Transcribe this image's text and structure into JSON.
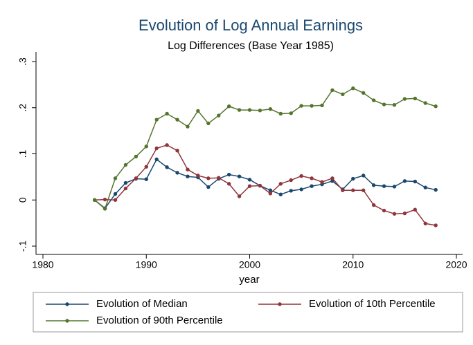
{
  "chart_data": {
    "type": "line",
    "title": "Evolution of Log Annual Earnings",
    "subtitle": "Log Differences (Base Year 1985)",
    "x_label": "year",
    "x": [
      1985,
      1986,
      1987,
      1988,
      1989,
      1990,
      1991,
      1992,
      1993,
      1994,
      1995,
      1996,
      1997,
      1998,
      1999,
      2000,
      2001,
      2002,
      2003,
      2004,
      2005,
      2006,
      2007,
      2008,
      2009,
      2010,
      2011,
      2012,
      2013,
      2014,
      2015,
      2016,
      2017,
      2018
    ],
    "series": [
      {
        "name": "Evolution of Median",
        "color": "#1a476f",
        "values": [
          0,
          -0.018,
          0.013,
          0.037,
          0.046,
          0.045,
          0.088,
          0.071,
          0.059,
          0.051,
          0.049,
          0.028,
          0.046,
          0.055,
          0.051,
          0.044,
          0.031,
          0.021,
          0.012,
          0.02,
          0.023,
          0.03,
          0.034,
          0.041,
          0.023,
          0.046,
          0.053,
          0.032,
          0.03,
          0.029,
          0.041,
          0.04,
          0.027,
          0.022
        ]
      },
      {
        "name": "Evolution of 10th Percentile",
        "color": "#90353b",
        "values": [
          0,
          0.001,
          0.0,
          0.025,
          0.047,
          0.072,
          0.112,
          0.119,
          0.107,
          0.066,
          0.053,
          0.047,
          0.048,
          0.035,
          0.008,
          0.03,
          0.031,
          0.014,
          0.035,
          0.043,
          0.052,
          0.047,
          0.039,
          0.047,
          0.021,
          0.021,
          0.021,
          -0.011,
          -0.023,
          -0.03,
          -0.029,
          -0.021,
          -0.051,
          -0.055
        ]
      },
      {
        "name": "Evolution of 90th Percentile",
        "color": "#55752f",
        "values": [
          0,
          -0.019,
          0.047,
          0.076,
          0.094,
          0.116,
          0.174,
          0.187,
          0.174,
          0.159,
          0.193,
          0.166,
          0.183,
          0.203,
          0.195,
          0.195,
          0.194,
          0.197,
          0.187,
          0.188,
          0.204,
          0.204,
          0.205,
          0.238,
          0.229,
          0.242,
          0.232,
          0.216,
          0.207,
          0.206,
          0.219,
          0.22,
          0.21,
          0.203
        ]
      }
    ],
    "xlim": [
      1979.33,
      2020.6
    ],
    "xticks": [
      1980,
      1990,
      2000,
      2010,
      2020
    ],
    "ylim": [
      -0.118,
      0.321
    ],
    "yticks": [
      {
        "value": -0.1,
        "label": "-.1"
      },
      0,
      {
        "value": 0.1,
        "label": ".1"
      },
      {
        "value": 0.2,
        "label": ".2"
      },
      {
        "value": 0.3,
        "label": ".3"
      }
    ]
  }
}
